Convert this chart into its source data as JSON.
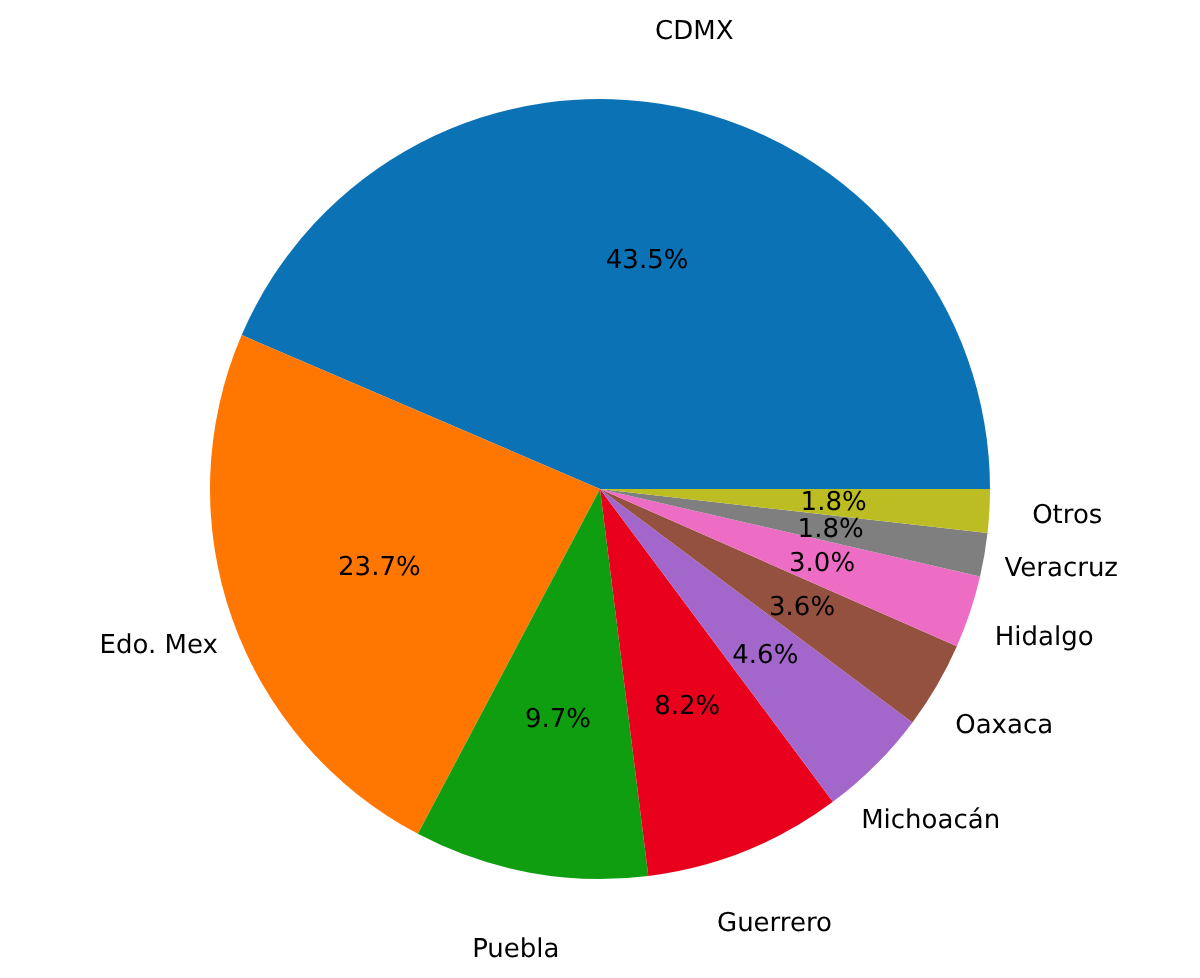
{
  "chart_data": {
    "type": "pie",
    "categories": [
      "CDMX",
      "Edo. Mex",
      "Puebla",
      "Guerrero",
      "Michoacán",
      "Oaxaca",
      "Hidalgo",
      "Veracruz",
      "Otros"
    ],
    "values": [
      43.5,
      23.7,
      9.7,
      8.2,
      4.6,
      3.6,
      3.0,
      1.8,
      1.8
    ],
    "value_labels": [
      "43.5%",
      "23.7%",
      "9.7%",
      "8.2%",
      "4.6%",
      "3.6%",
      "3.0%",
      "1.8%",
      "1.8%"
    ],
    "colors": [
      "#0b72b5",
      "#ff7700",
      "#0f9e0f",
      "#e8001c",
      "#a367cc",
      "#955140",
      "#ee6dc4",
      "#7f7f7f",
      "#bcbd22"
    ]
  }
}
